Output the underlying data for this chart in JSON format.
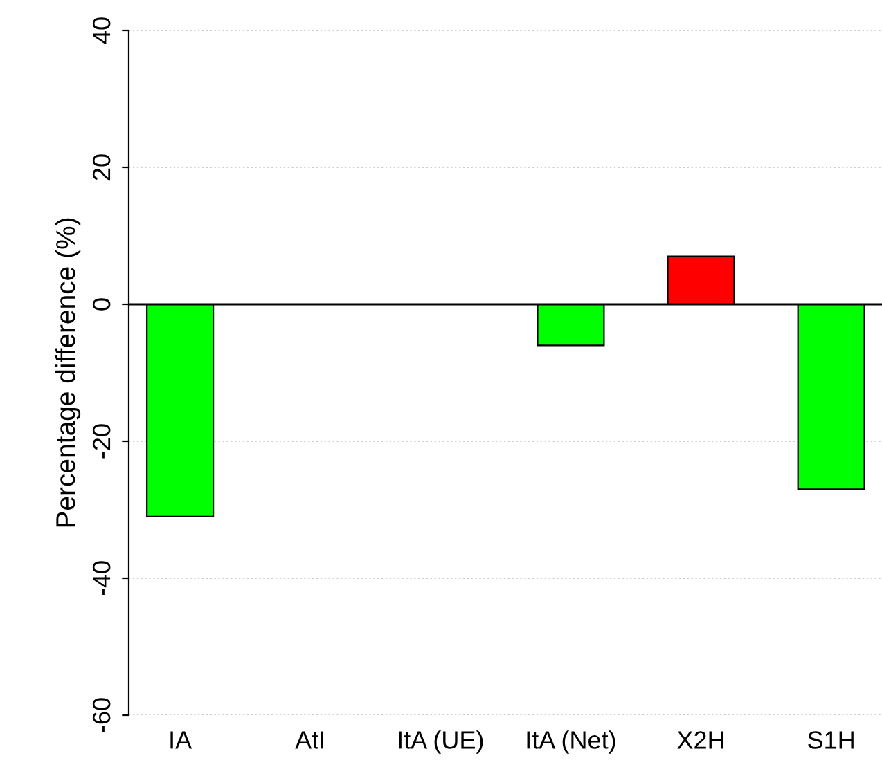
{
  "chart_data": {
    "type": "bar",
    "ylabel": "Percentage difference (%)",
    "categories": [
      "IA",
      "AtI",
      "ItA (UE)",
      "ItA (Net)",
      "X2H",
      "S1H"
    ],
    "values": [
      -31,
      0,
      0,
      -6,
      7,
      -27
    ],
    "colors": [
      "#00ff00",
      "#000000",
      "#000000",
      "#00ff00",
      "#ff0000",
      "#00ff00"
    ],
    "ylim": [
      -60,
      40
    ],
    "yticks": [
      -60,
      -40,
      -20,
      0,
      20,
      40
    ],
    "grid": "y",
    "ref_lines": [
      {
        "axis": "y",
        "value": 0,
        "color": "#000000"
      }
    ]
  }
}
